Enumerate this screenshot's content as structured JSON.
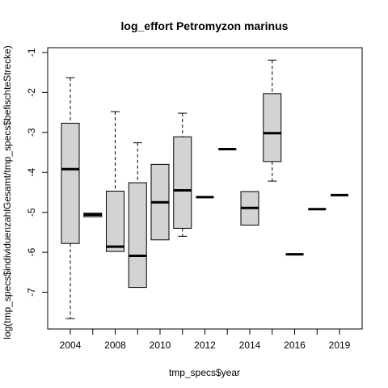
{
  "chart_data": {
    "type": "boxplot",
    "title": "log_effort Petromyzon marinus",
    "xlabel": "tmp_specs$year",
    "ylabel": "log(tmp_specs$individuenzahlGesamt/tmp_specs$befischteStrecke)",
    "ylim": [
      -7.92,
      -0.88
    ],
    "yticks": [
      -7,
      -6,
      -5,
      -4,
      -3,
      -2,
      -1
    ],
    "categories": [
      "2004",
      "2006",
      "2008",
      "2009",
      "2010",
      "2011",
      "2012",
      "2013",
      "2014",
      "2015",
      "2016",
      "2017",
      "2019"
    ],
    "xtick_labels_shown": [
      "2004",
      "2008",
      "2010",
      "2012",
      "2014",
      "2016",
      "2019"
    ],
    "boxes": [
      {
        "year": "2004",
        "min": -7.66,
        "q1": -5.78,
        "median": -3.92,
        "q3": -2.77,
        "max": -1.63
      },
      {
        "year": "2006",
        "min": -5.11,
        "q1": -5.11,
        "median": -5.06,
        "q3": -5.02,
        "max": -5.02
      },
      {
        "year": "2008",
        "min": -5.98,
        "q1": -5.98,
        "median": -5.86,
        "q3": -4.47,
        "max": -2.48
      },
      {
        "year": "2009",
        "min": -6.88,
        "q1": -6.88,
        "median": -6.09,
        "q3": -4.26,
        "max": -3.26
      },
      {
        "year": "2010",
        "min": -5.69,
        "q1": -5.69,
        "median": -4.75,
        "q3": -3.8,
        "max": -3.8
      },
      {
        "year": "2011",
        "min": -5.6,
        "q1": -5.4,
        "median": -4.45,
        "q3": -3.11,
        "max": -2.52
      },
      {
        "year": "2012",
        "min": -4.62,
        "q1": -4.62,
        "median": -4.62,
        "q3": -4.62,
        "max": -4.62
      },
      {
        "year": "2013",
        "min": -3.42,
        "q1": -3.42,
        "median": -3.42,
        "q3": -3.42,
        "max": -3.42
      },
      {
        "year": "2014",
        "min": -5.32,
        "q1": -5.32,
        "median": -4.89,
        "q3": -4.48,
        "max": -4.48
      },
      {
        "year": "2015",
        "min": -4.22,
        "q1": -3.73,
        "median": -3.02,
        "q3": -2.03,
        "max": -1.19
      },
      {
        "year": "2016",
        "min": -6.05,
        "q1": -6.05,
        "median": -6.05,
        "q3": -6.05,
        "max": -6.05
      },
      {
        "year": "2017",
        "min": -4.92,
        "q1": -4.92,
        "median": -4.92,
        "q3": -4.92,
        "max": -4.92
      },
      {
        "year": "2019",
        "min": -4.57,
        "q1": -4.57,
        "median": -4.57,
        "q3": -4.57,
        "max": -4.57
      }
    ],
    "box_color": "#d3d3d3",
    "grid": false,
    "legend": "none"
  }
}
